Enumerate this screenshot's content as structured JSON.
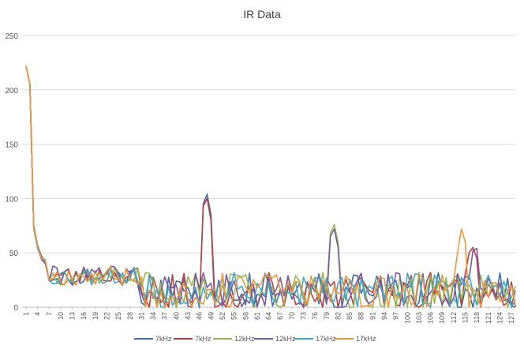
{
  "chart_data": {
    "type": "line",
    "title": "IR Data",
    "xlabel": "",
    "ylabel": "",
    "x_range": [
      1,
      128
    ],
    "x_tick_labels": [
      "1",
      "4",
      "7",
      "10",
      "13",
      "16",
      "19",
      "22",
      "25",
      "28",
      "31",
      "34",
      "37",
      "40",
      "43",
      "46",
      "49",
      "52",
      "55",
      "58",
      "61",
      "64",
      "67",
      "70",
      "73",
      "76",
      "79",
      "82",
      "85",
      "88",
      "91",
      "94",
      "97",
      "100",
      "103",
      "106",
      "109",
      "112",
      "115",
      "118",
      "121",
      "124",
      "127"
    ],
    "ylim": [
      0,
      250
    ],
    "y_ticks": [
      0,
      50,
      100,
      150,
      200,
      250
    ],
    "grid": "horizontal",
    "legend_position": "bottom",
    "series": [
      {
        "name": "7kHz",
        "color": "#3E6FA8",
        "seed": 11,
        "start": [
          222,
          205,
          75,
          57,
          47,
          42
        ],
        "peaks": [
          [
            47,
            95
          ],
          [
            48,
            104
          ],
          [
            49,
            85
          ]
        ]
      },
      {
        "name": "7kHz",
        "color": "#B8403E",
        "seed": 23,
        "start": [
          222,
          205,
          73,
          55,
          46,
          41
        ],
        "peaks": [
          [
            47,
            93
          ],
          [
            48,
            100
          ],
          [
            49,
            80
          ],
          [
            116,
            50
          ],
          [
            117,
            55
          ],
          [
            118,
            45
          ]
        ]
      },
      {
        "name": "12kHz",
        "color": "#96B94C",
        "seed": 37,
        "start": [
          222,
          205,
          74,
          56,
          45,
          43
        ],
        "peaks": [
          [
            80,
            68
          ],
          [
            81,
            76
          ],
          [
            82,
            60
          ]
        ]
      },
      {
        "name": "12kHz",
        "color": "#7A5A9E",
        "seed": 41,
        "start": [
          222,
          205,
          74,
          55,
          44,
          40
        ],
        "peaks": [
          [
            80,
            65
          ],
          [
            81,
            72
          ],
          [
            82,
            55
          ],
          [
            117,
            52
          ],
          [
            118,
            54
          ]
        ]
      },
      {
        "name": "17kHz",
        "color": "#3FA9C5",
        "seed": 53,
        "start": [
          222,
          205,
          72,
          54,
          45,
          42
        ],
        "peaks": []
      },
      {
        "name": "17kHz",
        "color": "#F0973A",
        "seed": 67,
        "start": [
          222,
          205,
          73,
          56,
          45,
          44
        ],
        "peaks": [
          [
            113,
            50
          ],
          [
            114,
            72
          ],
          [
            115,
            60
          ]
        ]
      }
    ]
  }
}
